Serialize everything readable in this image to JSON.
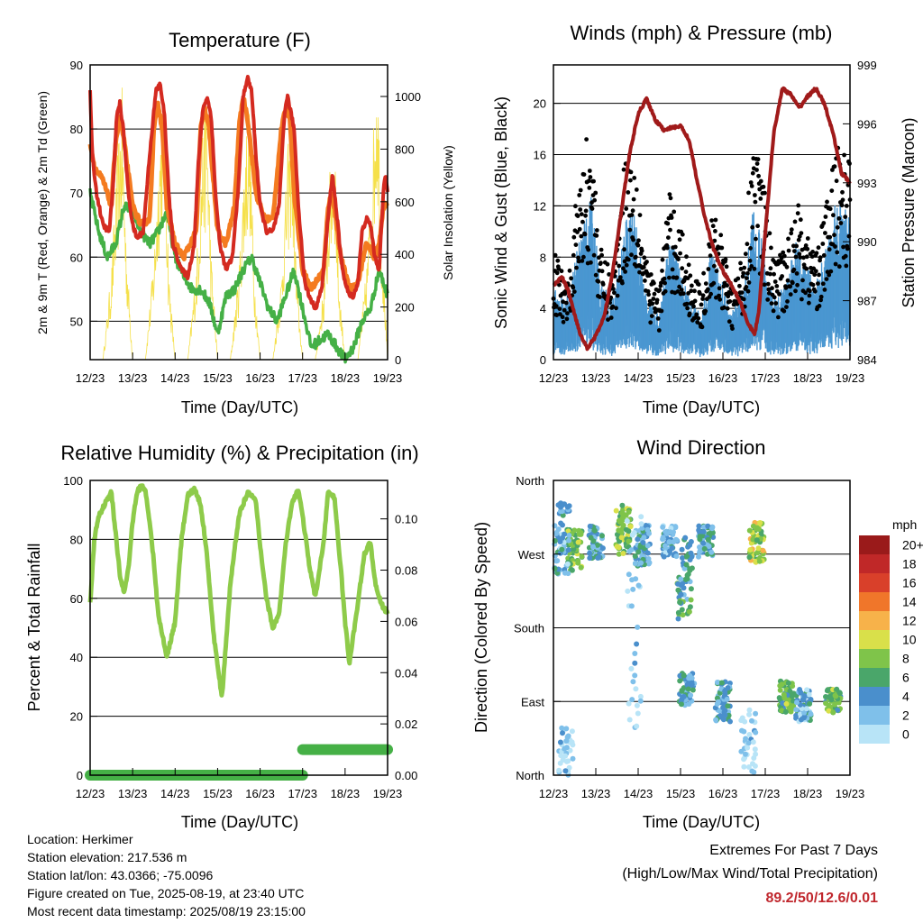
{
  "x_tick_labels": [
    "12/23",
    "13/23",
    "14/23",
    "15/23",
    "16/23",
    "17/23",
    "18/23",
    "19/23"
  ],
  "xlabel": "Time (Day/UTC)",
  "colors": {
    "temp_2m": "#d42a20",
    "temp_9m": "#f47b20",
    "dewpoint": "#45b046",
    "solar": "#f5e04a",
    "wind": "#4a97d1",
    "gust": "#000000",
    "pressure": "#a01a1a",
    "rh": "#8ecb4a",
    "precip": "#45b046"
  },
  "chart_data": [
    {
      "type": "line",
      "title": "Temperature (F)",
      "xlabel": "Time (Day/UTC)",
      "ylabel": "2m & 9m T (Red, Orange) & 2m Td (Green)",
      "y2label": "Solar Insolation (Yellow)",
      "ylim": [
        44,
        90
      ],
      "yticks": [
        50,
        60,
        70,
        80,
        90
      ],
      "y2lim": [
        0,
        1120
      ],
      "y2ticks": [
        0,
        200,
        400,
        600,
        800,
        1000
      ],
      "xlim": [
        0,
        7
      ],
      "grid": "horizontal",
      "series": [
        {
          "key": "t2m",
          "x": [
            0,
            0.05,
            0.15,
            0.3,
            0.45,
            0.55,
            0.62,
            0.7,
            0.78,
            0.9,
            1.0,
            1.1,
            1.25,
            1.4,
            1.55,
            1.65,
            1.75,
            1.85,
            1.95,
            2.05,
            2.15,
            2.3,
            2.45,
            2.55,
            2.65,
            2.75,
            2.85,
            2.95,
            3.05,
            3.2,
            3.35,
            3.5,
            3.6,
            3.7,
            3.8,
            3.9,
            4.0,
            4.15,
            4.3,
            4.45,
            4.55,
            4.6,
            4.65,
            4.8,
            4.9,
            5.0,
            5.05,
            5.15,
            5.3,
            5.45,
            5.6,
            5.7,
            5.8,
            5.9,
            6.0,
            6.1,
            6.2,
            6.3,
            6.4,
            6.5,
            6.6,
            6.7,
            6.8,
            6.9,
            6.95,
            7.0
          ],
          "y": [
            86,
            76,
            70,
            65,
            64,
            72,
            82,
            84,
            80,
            70,
            65,
            63,
            64,
            76,
            86,
            87,
            82,
            70,
            62,
            60,
            58,
            57,
            62,
            75,
            83,
            85,
            82,
            70,
            62,
            58,
            60,
            72,
            85,
            88,
            86,
            76,
            68,
            64,
            64,
            68,
            80,
            84,
            85,
            80,
            68,
            60,
            56,
            54,
            52,
            55,
            66,
            73,
            67,
            60,
            56,
            54,
            54,
            56,
            64,
            66,
            65,
            60,
            58,
            70,
            73,
            70
          ]
        },
        {
          "key": "t9m",
          "x": [
            0,
            0.1,
            0.3,
            0.5,
            0.6,
            0.7,
            0.8,
            1.0,
            1.2,
            1.4,
            1.5,
            1.6,
            1.7,
            1.8,
            2.0,
            2.2,
            2.5,
            2.6,
            2.7,
            2.8,
            3.0,
            3.2,
            3.4,
            3.5,
            3.6,
            3.7,
            3.9,
            4.1,
            4.3,
            4.5,
            4.6,
            4.7,
            4.8,
            5.0,
            5.2,
            5.5,
            5.6,
            5.7,
            5.9,
            6.1,
            6.3,
            6.5,
            6.7,
            6.8,
            6.9,
            7.0
          ],
          "y": [
            78,
            74,
            72,
            68,
            78,
            82,
            78,
            68,
            65,
            66,
            80,
            84,
            80,
            68,
            62,
            60,
            64,
            80,
            83,
            80,
            64,
            62,
            68,
            80,
            85,
            82,
            70,
            66,
            66,
            80,
            83,
            82,
            70,
            58,
            55,
            58,
            68,
            70,
            60,
            55,
            56,
            62,
            60,
            62,
            68,
            68
          ]
        },
        {
          "key": "td",
          "x": [
            0,
            0.2,
            0.4,
            0.6,
            0.8,
            1.0,
            1.2,
            1.4,
            1.6,
            1.8,
            2.0,
            2.2,
            2.4,
            2.6,
            2.8,
            3.0,
            3.2,
            3.4,
            3.6,
            3.8,
            4.0,
            4.2,
            4.4,
            4.6,
            4.8,
            5.0,
            5.2,
            5.4,
            5.6,
            5.8,
            6.0,
            6.2,
            6.4,
            6.6,
            6.8,
            7.0
          ],
          "y": [
            70,
            64,
            60,
            62,
            68,
            67,
            64,
            62,
            64,
            67,
            60,
            57,
            55,
            55,
            53,
            48,
            54,
            55,
            58,
            60,
            56,
            52,
            50,
            54,
            58,
            52,
            46,
            47,
            48,
            46,
            44,
            46,
            50,
            52,
            58,
            54
          ]
        },
        {
          "key": "solar",
          "x": [
            0,
            0.3,
            0.5,
            0.65,
            0.75,
            0.85,
            1.0,
            1.3,
            1.5,
            1.65,
            1.75,
            1.85,
            2.0,
            2.3,
            2.5,
            2.65,
            2.75,
            2.85,
            3.0,
            3.3,
            3.5,
            3.65,
            3.75,
            3.85,
            4.0,
            4.3,
            4.5,
            4.65,
            4.75,
            4.85,
            5.0,
            5.3,
            5.5,
            5.65,
            5.75,
            5.85,
            6.0,
            6.3,
            6.5,
            6.65,
            6.75,
            6.85,
            7.0
          ],
          "y": [
            0,
            0,
            300,
            700,
            900,
            400,
            0,
            0,
            350,
            800,
            950,
            300,
            0,
            0,
            320,
            780,
            900,
            350,
            0,
            0,
            300,
            750,
            880,
            320,
            0,
            0,
            280,
            700,
            860,
            300,
            0,
            0,
            250,
            650,
            820,
            280,
            0,
            0,
            300,
            700,
            1100,
            500,
            0
          ]
        }
      ]
    },
    {
      "type": "scatter",
      "title": "Winds (mph) & Pressure (mb)",
      "xlabel": "Time (Day/UTC)",
      "ylabel": "Sonic Wind & Gust (Blue, Black)",
      "y2label": "Station Pressure (Maroon)",
      "ylim": [
        0,
        23
      ],
      "yticks": [
        0,
        4,
        8,
        12,
        16,
        20
      ],
      "y2lim": [
        984,
        999
      ],
      "y2ticks": [
        984,
        987,
        990,
        993,
        996,
        999
      ],
      "xlim": [
        0,
        7
      ],
      "grid": "horizontal",
      "wind_envelope": [
        {
          "x": 0.0,
          "y": 5
        },
        {
          "x": 0.3,
          "y": 4
        },
        {
          "x": 0.7,
          "y": 9
        },
        {
          "x": 0.9,
          "y": 11
        },
        {
          "x": 1.1,
          "y": 5
        },
        {
          "x": 1.4,
          "y": 4
        },
        {
          "x": 1.7,
          "y": 9
        },
        {
          "x": 1.9,
          "y": 10
        },
        {
          "x": 2.2,
          "y": 4
        },
        {
          "x": 2.5,
          "y": 3
        },
        {
          "x": 2.7,
          "y": 8
        },
        {
          "x": 2.9,
          "y": 7
        },
        {
          "x": 3.2,
          "y": 4
        },
        {
          "x": 3.5,
          "y": 3
        },
        {
          "x": 3.7,
          "y": 7
        },
        {
          "x": 3.9,
          "y": 6
        },
        {
          "x": 4.2,
          "y": 3
        },
        {
          "x": 4.5,
          "y": 5
        },
        {
          "x": 4.7,
          "y": 10
        },
        {
          "x": 4.9,
          "y": 8
        },
        {
          "x": 5.2,
          "y": 4
        },
        {
          "x": 5.5,
          "y": 5
        },
        {
          "x": 5.7,
          "y": 8
        },
        {
          "x": 6.0,
          "y": 6
        },
        {
          "x": 6.2,
          "y": 5
        },
        {
          "x": 6.5,
          "y": 8
        },
        {
          "x": 6.7,
          "y": 11
        },
        {
          "x": 6.9,
          "y": 10
        },
        {
          "x": 7.0,
          "y": 9
        }
      ],
      "gust_envelope": [
        {
          "x": 0.0,
          "y": 8
        },
        {
          "x": 0.3,
          "y": 6
        },
        {
          "x": 0.7,
          "y": 15
        },
        {
          "x": 0.9,
          "y": 17
        },
        {
          "x": 1.1,
          "y": 8
        },
        {
          "x": 1.4,
          "y": 6
        },
        {
          "x": 1.7,
          "y": 15
        },
        {
          "x": 1.9,
          "y": 16
        },
        {
          "x": 2.2,
          "y": 7
        },
        {
          "x": 2.5,
          "y": 5
        },
        {
          "x": 2.7,
          "y": 12
        },
        {
          "x": 2.9,
          "y": 11
        },
        {
          "x": 3.2,
          "y": 7
        },
        {
          "x": 3.5,
          "y": 5
        },
        {
          "x": 3.7,
          "y": 10
        },
        {
          "x": 3.9,
          "y": 10
        },
        {
          "x": 4.2,
          "y": 5
        },
        {
          "x": 4.5,
          "y": 8
        },
        {
          "x": 4.7,
          "y": 16
        },
        {
          "x": 4.9,
          "y": 14
        },
        {
          "x": 5.2,
          "y": 7
        },
        {
          "x": 5.5,
          "y": 8
        },
        {
          "x": 5.7,
          "y": 12
        },
        {
          "x": 6.0,
          "y": 9
        },
        {
          "x": 6.2,
          "y": 8
        },
        {
          "x": 6.5,
          "y": 12
        },
        {
          "x": 6.7,
          "y": 16
        },
        {
          "x": 6.9,
          "y": 15
        },
        {
          "x": 7.0,
          "y": 14
        }
      ],
      "pressure": {
        "x": [
          0,
          0.2,
          0.35,
          0.5,
          0.65,
          0.8,
          1.0,
          1.2,
          1.4,
          1.6,
          1.8,
          2.0,
          2.2,
          2.4,
          2.6,
          2.8,
          3.0,
          3.2,
          3.4,
          3.6,
          3.8,
          4.0,
          4.2,
          4.4,
          4.6,
          4.75,
          4.85,
          5.0,
          5.2,
          5.4,
          5.6,
          5.8,
          6.0,
          6.2,
          6.4,
          6.6,
          6.8,
          7.0
        ],
        "y": [
          987.8,
          988.2,
          987.5,
          986.3,
          985.2,
          984.6,
          985.2,
          986.2,
          988.5,
          991.5,
          994.5,
          996.5,
          997.3,
          996.2,
          995.7,
          995.8,
          995.9,
          995.2,
          993.0,
          991.0,
          989.5,
          988.5,
          987.8,
          987.0,
          985.8,
          985.3,
          986.5,
          990.5,
          995.5,
          997.8,
          997.5,
          996.8,
          997.4,
          997.8,
          997.0,
          995.5,
          993.5,
          993.0
        ]
      }
    },
    {
      "type": "line",
      "title": "Relative Humidity (%) & Precipitation (in)",
      "xlabel": "Time (Day/UTC)",
      "ylabel": "Percent & Total Rainfall",
      "ylim": [
        0,
        100
      ],
      "yticks": [
        0,
        20,
        40,
        60,
        80,
        100
      ],
      "y2lim": [
        0,
        0.115
      ],
      "y2ticks": [
        0.0,
        0.02,
        0.04,
        0.06,
        0.08,
        0.1
      ],
      "xlim": [
        0,
        7
      ],
      "grid": "horizontal",
      "series": [
        {
          "key": "rh",
          "x": [
            0,
            0.1,
            0.2,
            0.35,
            0.5,
            0.6,
            0.7,
            0.8,
            0.9,
            1.0,
            1.1,
            1.2,
            1.3,
            1.45,
            1.6,
            1.8,
            2.0,
            2.15,
            2.3,
            2.45,
            2.6,
            2.75,
            2.9,
            3.0,
            3.1,
            3.2,
            3.3,
            3.5,
            3.7,
            3.9,
            4.0,
            4.15,
            4.3,
            4.45,
            4.6,
            4.75,
            4.9,
            5.0,
            5.15,
            5.3,
            5.5,
            5.6,
            5.75,
            5.9,
            6.0,
            6.1,
            6.3,
            6.45,
            6.6,
            6.7,
            6.85,
            7.0
          ],
          "y": [
            58,
            80,
            88,
            92,
            96,
            82,
            68,
            62,
            70,
            86,
            96,
            98,
            97,
            80,
            55,
            40,
            52,
            80,
            95,
            97,
            92,
            75,
            48,
            38,
            26,
            45,
            65,
            88,
            96,
            93,
            78,
            60,
            50,
            55,
            78,
            92,
            97,
            88,
            72,
            60,
            80,
            96,
            94,
            70,
            52,
            38,
            58,
            75,
            79,
            66,
            58,
            55
          ]
        },
        {
          "key": "precip",
          "x": [
            0,
            1,
            2,
            3,
            4,
            5,
            5.0,
            6,
            7
          ],
          "y": [
            0,
            0,
            0,
            0,
            0,
            0,
            0.01,
            0.01,
            0.01
          ]
        }
      ]
    },
    {
      "type": "scatter",
      "title": "Wind Direction",
      "xlabel": "Time (Day/UTC)",
      "ylabel": "Direction (Colored By Speed)",
      "yticks": [
        "North",
        "East",
        "South",
        "West",
        "North"
      ],
      "ylim": [
        0,
        360
      ],
      "xlim": [
        0,
        7
      ],
      "grid": "horizontal",
      "legend_title": "mph",
      "legend_labels": [
        "0",
        "2",
        "4",
        "6",
        "8",
        "10",
        "12",
        "14",
        "16",
        "18",
        "20+"
      ],
      "legend_colors": [
        "#b8e4f7",
        "#7fc0ea",
        "#4a8fcc",
        "#4aa66a",
        "#7fc44a",
        "#d9e04a",
        "#f7b24a",
        "#f0762a",
        "#d9402a",
        "#c02828",
        "#9a1a1a"
      ],
      "clusters": [
        {
          "x": 0.5,
          "dir": 275,
          "spread": 25,
          "speed": 8
        },
        {
          "x": 0.2,
          "dir": 290,
          "spread": 45,
          "speed": 4
        },
        {
          "x": 1.0,
          "dir": 285,
          "spread": 20,
          "speed": 5
        },
        {
          "x": 1.65,
          "dir": 300,
          "spread": 30,
          "speed": 9
        },
        {
          "x": 2.1,
          "dir": 280,
          "spread": 25,
          "speed": 5
        },
        {
          "x": 2.75,
          "dir": 285,
          "spread": 20,
          "speed": 4
        },
        {
          "x": 3.1,
          "dir": 240,
          "spread": 50,
          "speed": 6
        },
        {
          "x": 3.15,
          "dir": 105,
          "spread": 20,
          "speed": 5
        },
        {
          "x": 3.6,
          "dir": 285,
          "spread": 20,
          "speed": 5
        },
        {
          "x": 4.0,
          "dir": 90,
          "spread": 25,
          "speed": 5
        },
        {
          "x": 4.8,
          "dir": 285,
          "spread": 25,
          "speed": 10
        },
        {
          "x": 5.5,
          "dir": 95,
          "spread": 20,
          "speed": 8
        },
        {
          "x": 5.9,
          "dir": 85,
          "spread": 20,
          "speed": 4
        },
        {
          "x": 6.6,
          "dir": 90,
          "spread": 15,
          "speed": 8
        },
        {
          "x": 0.3,
          "dir": 30,
          "spread": 30,
          "speed": 2
        },
        {
          "x": 4.6,
          "dir": 40,
          "spread": 40,
          "speed": 2
        },
        {
          "x": 1.9,
          "dir": 200,
          "spread": 150,
          "speed": 2
        }
      ]
    }
  ],
  "footer": {
    "location": "Location: Herkimer",
    "elevation": "Station elevation: 217.536 m",
    "latlon": "Station lat/lon: 43.0366; -75.0096",
    "created": "Figure created on Tue, 2025-08-19, at 23:40 UTC",
    "recent": "Most recent data timestamp: 2025/08/19 23:15:00",
    "extremes_title": "Extremes For Past 7 Days",
    "extremes_sub": "(High/Low/Max Wind/Total Precipitation)",
    "extremes_values": "89.2/50/12.6/0.01"
  }
}
